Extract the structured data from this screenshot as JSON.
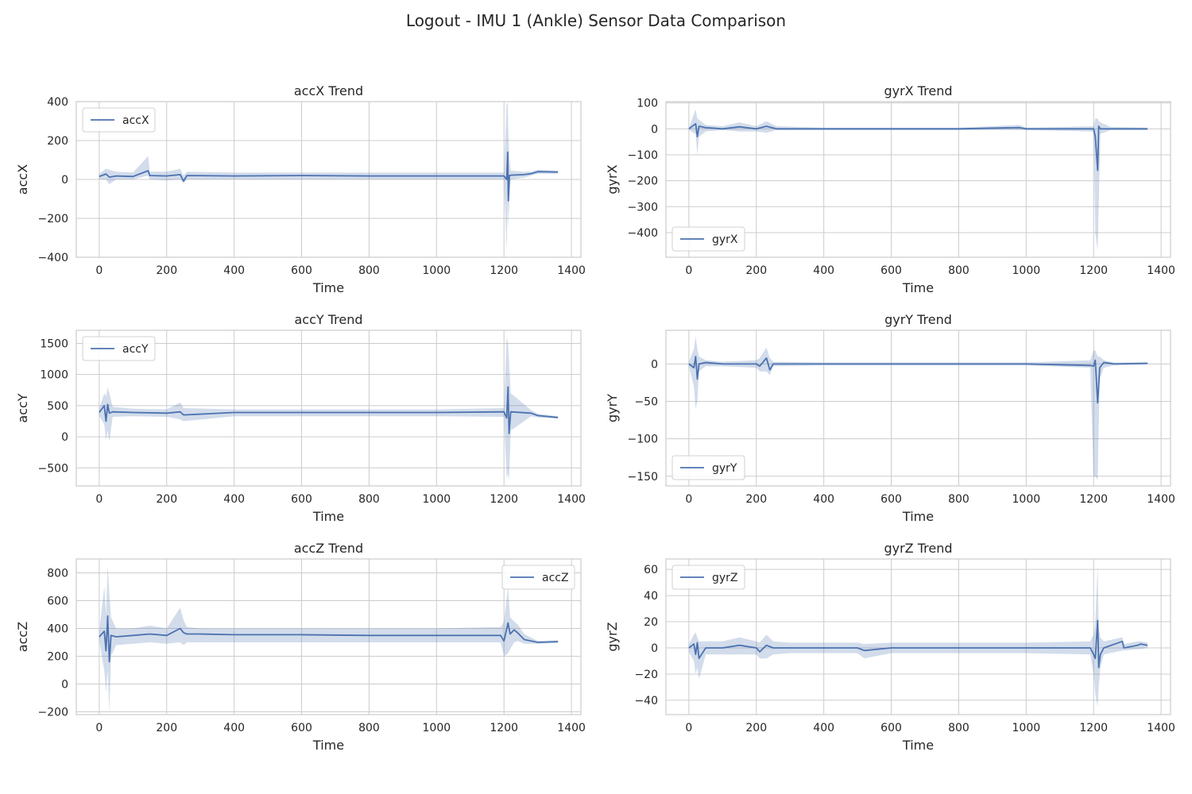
{
  "figure": {
    "title": "Logout - IMU 1 (Ankle) Sensor Data Comparison"
  },
  "colors": {
    "line": "#4c72b0",
    "band": "#4c72b0",
    "grid": "#cccccc",
    "frame": "#cccccc",
    "text": "#262626"
  },
  "chart_data": [
    {
      "type": "line",
      "title": "accX Trend",
      "xlabel": "Time",
      "ylabel": "accX",
      "xlim": [
        -68,
        1428
      ],
      "ylim": [
        -400,
        400
      ],
      "xticks": [
        0,
        200,
        400,
        600,
        800,
        1000,
        1200,
        1400
      ],
      "yticks": [
        -400,
        -200,
        0,
        200,
        400
      ],
      "legend": {
        "entries": [
          "accX"
        ],
        "position": "upper-left"
      },
      "series": [
        {
          "name": "accX",
          "x": [
            0,
            20,
            30,
            50,
            100,
            145,
            150,
            200,
            240,
            250,
            260,
            400,
            600,
            800,
            1000,
            1200,
            1208,
            1211,
            1213,
            1216,
            1220,
            1260,
            1280,
            1300,
            1360
          ],
          "y": [
            15,
            28,
            12,
            18,
            15,
            45,
            20,
            18,
            25,
            -8,
            20,
            18,
            20,
            18,
            18,
            18,
            0,
            140,
            -110,
            20,
            22,
            25,
            30,
            40,
            38
          ],
          "band_lower": [
            0,
            0,
            -25,
            0,
            0,
            20,
            0,
            -5,
            0,
            -20,
            0,
            0,
            0,
            0,
            0,
            0,
            -370,
            -100,
            -250,
            -100,
            0,
            10,
            20,
            30,
            30
          ],
          "band_upper": [
            30,
            55,
            50,
            40,
            35,
            120,
            40,
            40,
            55,
            20,
            40,
            35,
            35,
            35,
            35,
            35,
            390,
            390,
            240,
            110,
            45,
            40,
            40,
            50,
            45
          ]
        }
      ]
    },
    {
      "type": "line",
      "title": "gyrX Trend",
      "xlabel": "Time",
      "ylabel": "gyrX",
      "xlim": [
        -68,
        1428
      ],
      "ylim": [
        -495,
        105
      ],
      "xticks": [
        0,
        200,
        400,
        600,
        800,
        1000,
        1200,
        1400
      ],
      "yticks": [
        -400,
        -300,
        -200,
        -100,
        0,
        100
      ],
      "legend": {
        "entries": [
          "gyrX"
        ],
        "position": "lower-left"
      },
      "series": [
        {
          "name": "gyrX",
          "x": [
            0,
            20,
            25,
            30,
            50,
            100,
            150,
            200,
            230,
            260,
            400,
            600,
            800,
            980,
            1000,
            1200,
            1205,
            1212,
            1215,
            1220,
            1250,
            1360
          ],
          "y": [
            0,
            20,
            -30,
            10,
            5,
            0,
            8,
            0,
            10,
            0,
            0,
            0,
            0,
            5,
            0,
            0,
            -30,
            -160,
            10,
            0,
            0,
            0
          ],
          "band_lower": [
            -5,
            -20,
            -100,
            -30,
            -10,
            -5,
            -10,
            -10,
            -15,
            -5,
            -5,
            -5,
            -5,
            -5,
            -5,
            -10,
            -400,
            -470,
            -300,
            -20,
            -5,
            -5
          ],
          "band_upper": [
            5,
            75,
            40,
            35,
            15,
            10,
            25,
            10,
            30,
            10,
            5,
            5,
            5,
            15,
            5,
            10,
            40,
            40,
            30,
            25,
            8,
            5
          ]
        }
      ]
    },
    {
      "type": "line",
      "title": "accY Trend",
      "xlabel": "Time",
      "ylabel": "accY",
      "xlim": [
        -68,
        1428
      ],
      "ylim": [
        -790,
        1710
      ],
      "xticks": [
        0,
        200,
        400,
        600,
        800,
        1000,
        1200,
        1400
      ],
      "yticks": [
        -500,
        0,
        500,
        1000,
        1500
      ],
      "legend": {
        "entries": [
          "accY"
        ],
        "position": "upper-left"
      },
      "series": [
        {
          "name": "accY",
          "x": [
            0,
            15,
            20,
            25,
            30,
            40,
            100,
            200,
            240,
            250,
            400,
            600,
            800,
            1000,
            1200,
            1208,
            1212,
            1215,
            1220,
            1280,
            1300,
            1360
          ],
          "y": [
            390,
            500,
            250,
            520,
            380,
            400,
            390,
            380,
            400,
            350,
            390,
            390,
            390,
            390,
            400,
            300,
            800,
            50,
            400,
            380,
            340,
            310
          ],
          "band_lower": [
            330,
            200,
            -50,
            100,
            -80,
            320,
            330,
            320,
            280,
            250,
            330,
            330,
            330,
            330,
            320,
            -650,
            -600,
            -700,
            100,
            330,
            310,
            290
          ],
          "band_upper": [
            450,
            700,
            650,
            790,
            700,
            480,
            450,
            440,
            550,
            460,
            440,
            440,
            440,
            440,
            460,
            1600,
            1500,
            1200,
            700,
            430,
            370,
            330
          ]
        }
      ]
    },
    {
      "type": "line",
      "title": "gyrY Trend",
      "xlabel": "Time",
      "ylabel": "gyrY",
      "xlim": [
        -68,
        1428
      ],
      "ylim": [
        -163,
        45
      ],
      "xticks": [
        0,
        200,
        400,
        600,
        800,
        1000,
        1200,
        1400
      ],
      "yticks": [
        -150,
        -100,
        -50,
        0
      ],
      "legend": {
        "entries": [
          "gyrY"
        ],
        "position": "lower-left"
      },
      "series": [
        {
          "name": "gyrY",
          "x": [
            0,
            15,
            20,
            25,
            30,
            50,
            100,
            200,
            210,
            230,
            240,
            250,
            400,
            600,
            800,
            1000,
            1190,
            1200,
            1205,
            1212,
            1218,
            1230,
            1260,
            1360
          ],
          "y": [
            0,
            -5,
            10,
            -20,
            0,
            2,
            0,
            0,
            -3,
            8,
            -8,
            0,
            0,
            0,
            0,
            0,
            -2,
            -3,
            5,
            -52,
            -5,
            2,
            0,
            1
          ],
          "band_lower": [
            -3,
            -30,
            -60,
            -50,
            -10,
            -3,
            -3,
            -5,
            -10,
            -10,
            -15,
            -3,
            -2,
            -2,
            -2,
            -2,
            -5,
            -150,
            -150,
            -155,
            -20,
            -5,
            -2,
            -1
          ],
          "band_upper": [
            3,
            20,
            37,
            20,
            10,
            5,
            3,
            5,
            8,
            22,
            8,
            3,
            2,
            2,
            2,
            2,
            5,
            18,
            18,
            10,
            10,
            5,
            2,
            2
          ]
        }
      ]
    },
    {
      "type": "line",
      "title": "accZ Trend",
      "xlabel": "Time",
      "ylabel": "accZ",
      "xlim": [
        -68,
        1428
      ],
      "ylim": [
        -220,
        900
      ],
      "xticks": [
        0,
        200,
        400,
        600,
        800,
        1000,
        1200,
        1400
      ],
      "yticks": [
        -200,
        0,
        200,
        400,
        600,
        800
      ],
      "legend": {
        "entries": [
          "accZ"
        ],
        "position": "upper-right"
      },
      "series": [
        {
          "name": "accZ",
          "x": [
            0,
            15,
            20,
            25,
            30,
            35,
            50,
            100,
            150,
            200,
            240,
            250,
            260,
            300,
            400,
            600,
            800,
            1000,
            1190,
            1200,
            1212,
            1218,
            1230,
            1240,
            1260,
            1300,
            1360
          ],
          "y": [
            340,
            380,
            240,
            490,
            160,
            350,
            340,
            350,
            360,
            350,
            400,
            370,
            360,
            360,
            355,
            355,
            350,
            350,
            350,
            310,
            440,
            360,
            390,
            370,
            320,
            300,
            305
          ],
          "band_lower": [
            310,
            100,
            -60,
            100,
            -200,
            200,
            280,
            290,
            300,
            290,
            300,
            280,
            300,
            300,
            300,
            300,
            300,
            300,
            300,
            200,
            220,
            250,
            300,
            310,
            290,
            290,
            295
          ],
          "band_upper": [
            380,
            700,
            500,
            850,
            650,
            480,
            400,
            400,
            420,
            400,
            550,
            460,
            410,
            400,
            400,
            400,
            400,
            400,
            410,
            450,
            700,
            480,
            450,
            430,
            360,
            310,
            315
          ]
        }
      ]
    },
    {
      "type": "line",
      "title": "gyrZ Trend",
      "xlabel": "Time",
      "ylabel": "gyrZ",
      "xlim": [
        -68,
        1428
      ],
      "ylim": [
        -51,
        68
      ],
      "xticks": [
        0,
        200,
        400,
        600,
        800,
        1000,
        1200,
        1400
      ],
      "yticks": [
        -40,
        -20,
        0,
        20,
        40,
        60
      ],
      "legend": {
        "entries": [
          "gyrZ"
        ],
        "position": "upper-left"
      },
      "series": [
        {
          "name": "gyrZ",
          "x": [
            0,
            15,
            20,
            25,
            30,
            50,
            100,
            150,
            200,
            210,
            230,
            250,
            300,
            400,
            500,
            520,
            600,
            800,
            1000,
            1190,
            1200,
            1205,
            1212,
            1215,
            1220,
            1230,
            1285,
            1290,
            1330,
            1340,
            1360
          ],
          "y": [
            0,
            3,
            -5,
            4,
            -8,
            0,
            0,
            2,
            0,
            -3,
            2,
            0,
            0,
            0,
            0,
            -2,
            0,
            0,
            0,
            0,
            -5,
            -8,
            21,
            -15,
            -5,
            0,
            5,
            0,
            2,
            3,
            2
          ],
          "band_lower": [
            -3,
            -10,
            -20,
            -15,
            -24,
            -5,
            -5,
            -5,
            -5,
            -8,
            -8,
            -5,
            -4,
            -4,
            -4,
            -8,
            -4,
            -4,
            -4,
            -5,
            -20,
            -35,
            -45,
            -30,
            -15,
            -5,
            -2,
            -2,
            -1,
            -1,
            0
          ],
          "band_upper": [
            3,
            10,
            12,
            8,
            5,
            5,
            5,
            8,
            5,
            4,
            10,
            5,
            4,
            4,
            4,
            3,
            4,
            4,
            4,
            5,
            10,
            20,
            63,
            15,
            8,
            5,
            8,
            3,
            5,
            5,
            4
          ]
        }
      ]
    }
  ]
}
